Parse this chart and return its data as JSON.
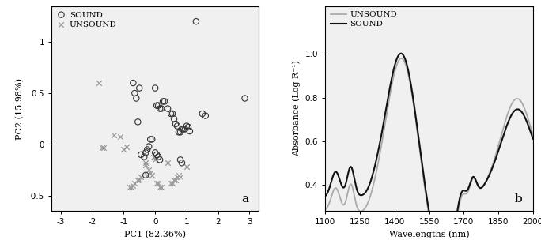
{
  "sound_pc1": [
    1.3,
    2.85,
    -0.6,
    -0.65,
    -0.7,
    -0.5,
    -0.45,
    0.0,
    0.05,
    0.1,
    0.15,
    0.2,
    0.25,
    0.3,
    0.4,
    0.5,
    0.55,
    0.6,
    0.65,
    0.7,
    0.75,
    0.8,
    0.85,
    0.9,
    0.95,
    1.0,
    1.05,
    1.1,
    1.5,
    1.6,
    -0.1,
    -0.15,
    -0.2,
    -0.25,
    -0.3,
    -0.35,
    0.0,
    0.05,
    0.1,
    0.15,
    0.8,
    0.85,
    -0.55,
    -0.3
  ],
  "sound_pc2": [
    1.2,
    0.45,
    0.45,
    0.5,
    0.6,
    0.55,
    -0.1,
    0.55,
    0.38,
    0.38,
    0.35,
    0.35,
    0.42,
    0.42,
    0.35,
    0.3,
    0.3,
    0.25,
    0.2,
    0.18,
    0.12,
    0.12,
    0.15,
    0.15,
    0.15,
    0.18,
    0.17,
    0.13,
    0.3,
    0.28,
    0.05,
    0.05,
    -0.02,
    -0.05,
    -0.08,
    -0.12,
    -0.08,
    -0.1,
    -0.12,
    -0.15,
    -0.15,
    -0.18,
    0.22,
    -0.3
  ],
  "unsound_pc1": [
    -1.8,
    -1.7,
    -1.65,
    -1.3,
    -1.1,
    -1.0,
    -0.9,
    -0.8,
    -0.75,
    -0.7,
    -0.65,
    -0.55,
    -0.5,
    -0.45,
    -0.3,
    -0.3,
    -0.25,
    -0.2,
    -0.15,
    -0.1,
    -0.05,
    0.0,
    0.05,
    0.1,
    0.15,
    0.2,
    0.4,
    0.5,
    0.55,
    0.6,
    0.65,
    0.7,
    0.75,
    0.8,
    1.0
  ],
  "unsound_pc2": [
    0.6,
    -0.03,
    -0.03,
    0.09,
    0.08,
    -0.05,
    -0.02,
    -0.42,
    -0.42,
    -0.4,
    -0.38,
    -0.35,
    -0.35,
    -0.32,
    -0.18,
    -0.2,
    -0.3,
    -0.25,
    -0.28,
    -0.3,
    -0.12,
    -0.15,
    -0.38,
    -0.38,
    -0.42,
    -0.42,
    -0.18,
    -0.38,
    -0.38,
    -0.35,
    -0.35,
    -0.32,
    -0.3,
    -0.32,
    -0.22
  ],
  "pc1_label": "PC1 (82.36%)",
  "pc2_label": "PC2 (15.98%)",
  "sound_color_scatter": "#333333",
  "unsound_color_scatter": "#999999",
  "sound_color_line": "#111111",
  "unsound_color_line": "#aaaaaa",
  "label_a": "a",
  "label_b": "b",
  "xlim_scatter": [
    -3.3,
    3.3
  ],
  "ylim_scatter": [
    -0.65,
    1.35
  ],
  "xticks_scatter": [
    -3,
    -2,
    -1,
    0,
    1,
    2,
    3
  ],
  "yticks_scatter": [
    -0.5,
    0.0,
    0.5,
    1.0
  ],
  "xlim_spec": [
    1100,
    2000
  ],
  "ylim_spec": [
    0.28,
    1.22
  ],
  "yticks_spec": [
    0.4,
    0.6,
    0.8,
    1.0
  ],
  "xticks_spec": [
    1100,
    1250,
    1400,
    1550,
    1700,
    1850,
    2000
  ],
  "xlabel_spec": "Wavelengths (nm)",
  "ylabel_spec": "Absorbance (Log R⁻¹)",
  "panel_bg": "#f0f0f0"
}
